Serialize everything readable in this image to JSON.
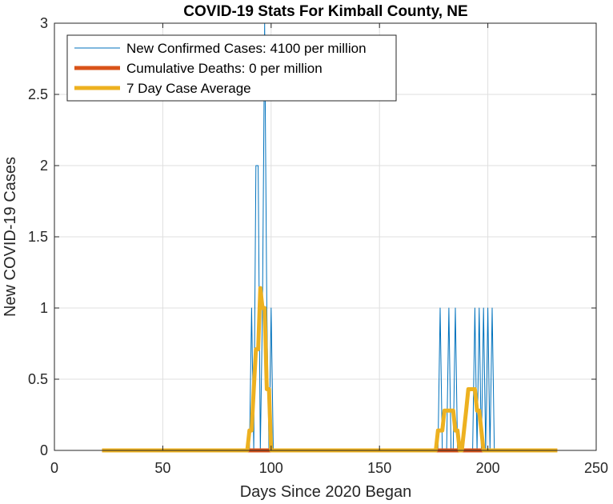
{
  "chart_data": {
    "type": "line",
    "title": "COVID-19 Stats For Kimball County, NE",
    "xlabel": "Days Since 2020 Began",
    "ylabel": "New COVID-19 Cases",
    "xlim": [
      0,
      250
    ],
    "ylim": [
      0,
      3
    ],
    "xticks": [
      0,
      50,
      100,
      150,
      200,
      250
    ],
    "yticks": [
      0,
      0.5,
      1,
      1.5,
      2,
      2.5,
      3
    ],
    "xtick_labels": [
      "0",
      "50",
      "100",
      "150",
      "200",
      "250"
    ],
    "ytick_labels": [
      "0",
      "0.5",
      "1",
      "1.5",
      "2",
      "2.5",
      "3"
    ],
    "grid": true,
    "legend_position": "top-left",
    "series": [
      {
        "name": "New Confirmed Cases: 4100 per million",
        "color": "#0072BD",
        "style": "thin",
        "x": [
          22,
          90,
          91,
          92,
          93,
          94,
          95,
          96,
          97,
          98,
          99,
          100,
          101,
          177,
          178,
          179,
          180,
          181,
          182,
          183,
          184,
          185,
          186,
          187,
          192,
          193,
          194,
          195,
          196,
          197,
          198,
          199,
          200,
          201,
          202,
          203,
          232
        ],
        "y": [
          0,
          0,
          1,
          0,
          2,
          2,
          0,
          1,
          3,
          1,
          0,
          1,
          0,
          0,
          1,
          0,
          0,
          0,
          1,
          0,
          0,
          1,
          0,
          0,
          0,
          0,
          1,
          0,
          1,
          0,
          1,
          0,
          1,
          0,
          1,
          0,
          0
        ]
      },
      {
        "name": "Cumulative Deaths: 0 per million",
        "color": "#D95319",
        "style": "thick",
        "x": [
          22,
          91,
          103,
          177,
          180,
          192,
          193,
          208,
          232
        ],
        "y": [
          0,
          0,
          0,
          0,
          0,
          0,
          0,
          0,
          0
        ]
      },
      {
        "name": "7 Day Case Average",
        "color": "#EDB120",
        "style": "thick",
        "x": [
          22,
          89,
          90,
          91,
          92,
          93,
          94,
          95,
          96,
          97,
          98,
          99,
          100,
          101,
          102,
          103,
          104,
          176,
          177,
          178,
          179,
          180,
          181,
          182,
          183,
          184,
          185,
          186,
          187,
          188,
          189,
          190,
          191,
          192,
          193,
          194,
          195,
          196,
          197,
          198,
          199,
          200,
          201,
          202,
          203,
          204,
          205,
          206,
          207,
          208,
          209,
          232
        ],
        "y": [
          0,
          0,
          0.14,
          0.14,
          0.43,
          0.71,
          0.71,
          1.14,
          1.0,
          1.0,
          0.43,
          0.43,
          0.0,
          0.0,
          0.0,
          0.0,
          0.0,
          0.0,
          0.14,
          0.14,
          0.14,
          0.28,
          0.28,
          0.28,
          0.28,
          0.28,
          0.14,
          0.14,
          0.0,
          0.0,
          0.14,
          0.28,
          0.43,
          0.43,
          0.43,
          0.43,
          0.28,
          0.28,
          0.14,
          0.0,
          0.0,
          0.0,
          0.0,
          0.0,
          0.0,
          0.0,
          0.0,
          0.0,
          0.0,
          0.0,
          0.0,
          0.0
        ]
      }
    ]
  }
}
